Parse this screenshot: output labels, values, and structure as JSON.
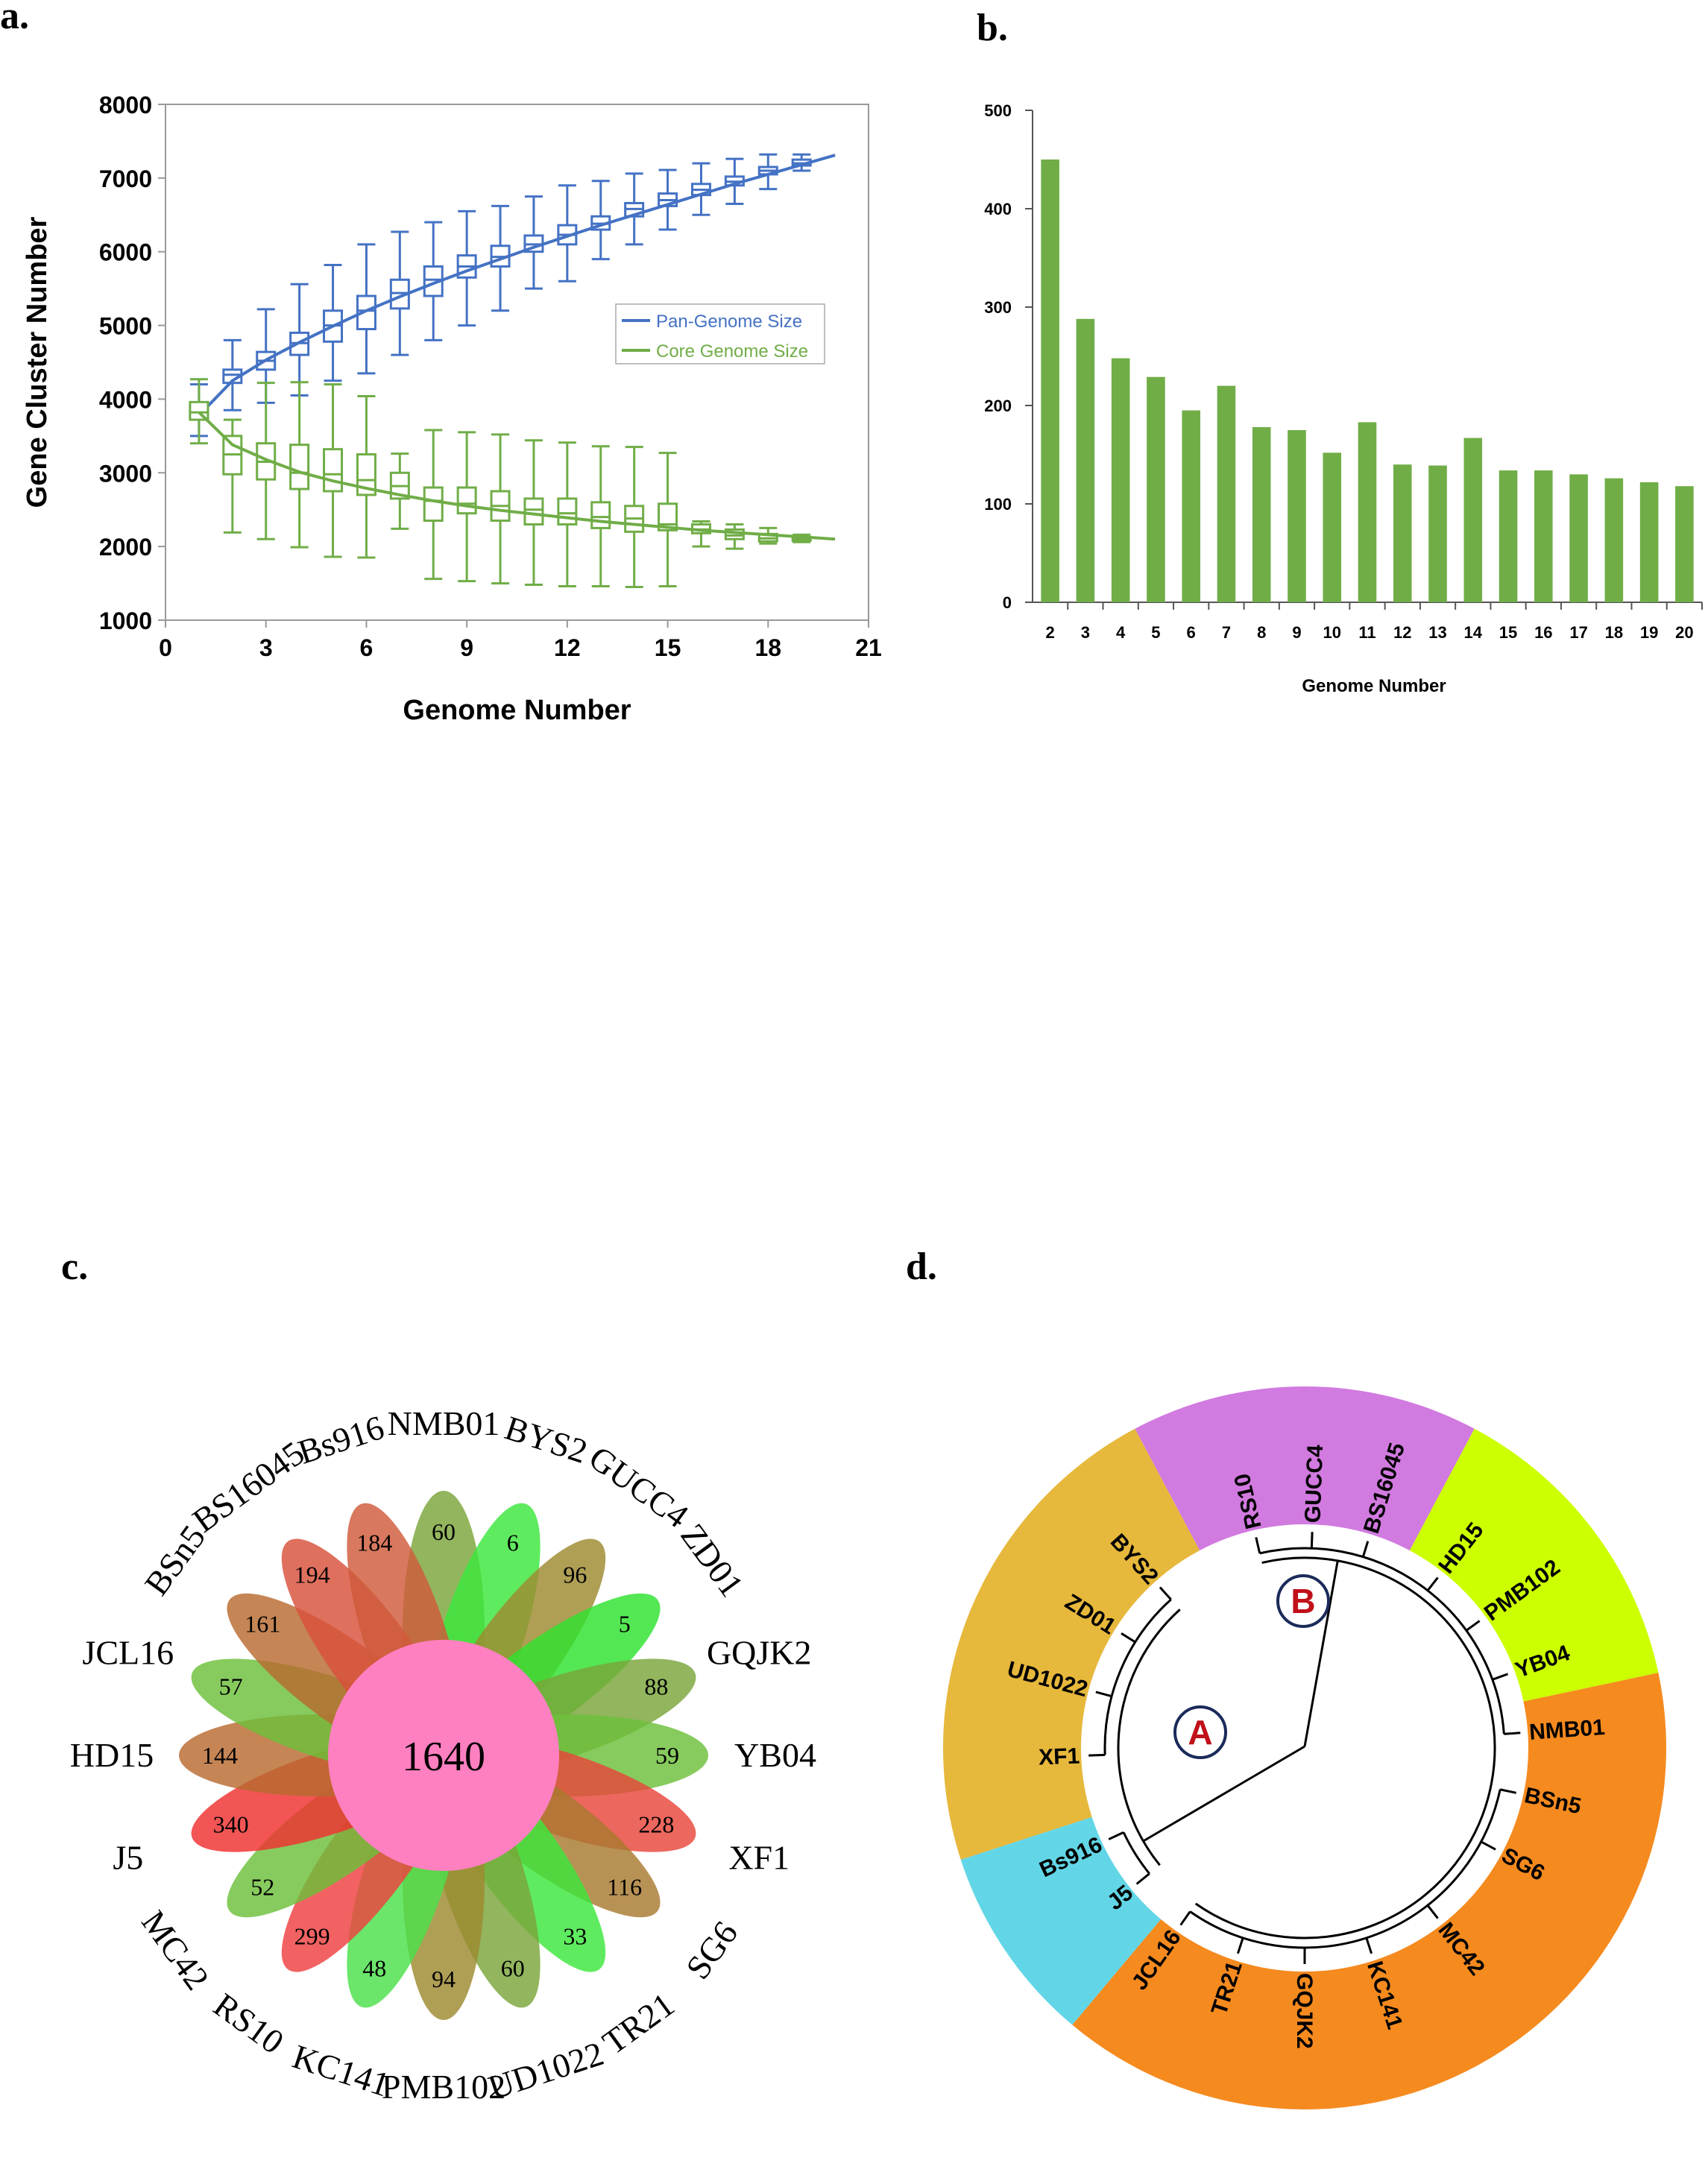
{
  "panel_labels": {
    "a": "a.",
    "b": "b.",
    "c": "c.",
    "d": "d."
  },
  "colors": {
    "pan": "#4472c4",
    "core": "#70ad47",
    "bar": "#70ad47",
    "center": "#ff80c0"
  },
  "chart_data": [
    {
      "id": "a",
      "type": "line",
      "xlabel": "Genome Number",
      "ylabel": "Gene Cluster Number",
      "xlim": [
        0,
        21
      ],
      "ylim": [
        1000,
        8000
      ],
      "xticks": [
        "0",
        "3",
        "6",
        "9",
        "12",
        "15",
        "18",
        "21"
      ],
      "yticks": [
        "1000",
        "2000",
        "3000",
        "4000",
        "5000",
        "6000",
        "7000",
        "8000"
      ],
      "legend": [
        "Pan-Genome Size",
        "Core Genome Size"
      ],
      "x": [
        1,
        2,
        3,
        4,
        5,
        6,
        7,
        8,
        9,
        10,
        11,
        12,
        13,
        14,
        15,
        16,
        17,
        18,
        19,
        20
      ],
      "series": [
        {
          "name": "Pan-Genome Size",
          "curve": [
            3780,
            4250,
            4530,
            4770,
            4990,
            5200,
            5390,
            5570,
            5740,
            5900,
            6060,
            6210,
            6360,
            6500,
            6640,
            6780,
            6920,
            7050,
            7180,
            7310
          ],
          "median": [
            3820,
            4330,
            4520,
            4760,
            5000,
            5200,
            5440,
            5620,
            5800,
            5930,
            6100,
            6230,
            6380,
            6580,
            6700,
            6840,
            6950,
            7100,
            7200
          ],
          "q1": [
            3730,
            4220,
            4400,
            4600,
            4780,
            4950,
            5230,
            5400,
            5650,
            5800,
            6000,
            6100,
            6300,
            6480,
            6620,
            6770,
            6900,
            7050,
            7170
          ],
          "q3": [
            3920,
            4400,
            4640,
            4900,
            5200,
            5400,
            5620,
            5800,
            5950,
            6080,
            6220,
            6360,
            6480,
            6660,
            6790,
            6920,
            7020,
            7150,
            7250
          ],
          "whisker_low": [
            3500,
            3850,
            3950,
            4050,
            4250,
            4350,
            4600,
            4800,
            5000,
            5200,
            5500,
            5600,
            5900,
            6100,
            6300,
            6500,
            6650,
            6850,
            7100
          ],
          "whisker_high": [
            4200,
            4800,
            5220,
            5560,
            5820,
            6100,
            6270,
            6400,
            6550,
            6620,
            6750,
            6900,
            6960,
            7060,
            7110,
            7200,
            7260,
            7320,
            7320
          ]
        },
        {
          "name": "Core Genome Size",
          "curve": [
            3820,
            3380,
            3180,
            3010,
            2890,
            2790,
            2700,
            2620,
            2550,
            2490,
            2440,
            2390,
            2340,
            2300,
            2260,
            2220,
            2190,
            2160,
            2130,
            2100
          ],
          "median": [
            3820,
            3250,
            3150,
            3000,
            2980,
            2900,
            2820,
            2620,
            2580,
            2550,
            2500,
            2450,
            2400,
            2380,
            2300,
            2230,
            2150,
            2110,
            2100
          ],
          "q1": [
            3720,
            2980,
            2910,
            2780,
            2750,
            2700,
            2650,
            2350,
            2450,
            2350,
            2300,
            2300,
            2250,
            2200,
            2220,
            2180,
            2100,
            2070,
            2080
          ],
          "q3": [
            3960,
            3500,
            3400,
            3380,
            3320,
            3250,
            3000,
            2800,
            2800,
            2750,
            2650,
            2650,
            2600,
            2550,
            2580,
            2300,
            2230,
            2170,
            2130
          ],
          "whisker_low": [
            3400,
            2190,
            2100,
            1990,
            1860,
            1850,
            2240,
            1560,
            1530,
            1500,
            1480,
            1460,
            1460,
            1450,
            1460,
            2000,
            1970,
            2040,
            2060
          ],
          "whisker_high": [
            4270,
            3720,
            4220,
            4230,
            4200,
            4040,
            3260,
            3580,
            3550,
            3520,
            3440,
            3410,
            3360,
            3350,
            3270,
            2340,
            2300,
            2250,
            2160
          ]
        }
      ]
    },
    {
      "id": "b",
      "type": "bar",
      "xlabel": "Genome Number",
      "ylabel": "",
      "ylim": [
        0,
        500
      ],
      "yticks": [
        "0",
        "100",
        "200",
        "300",
        "400",
        "500"
      ],
      "categories": [
        "2",
        "3",
        "4",
        "5",
        "6",
        "7",
        "8",
        "9",
        "10",
        "11",
        "12",
        "13",
        "14",
        "15",
        "16",
        "17",
        "18",
        "19",
        "20"
      ],
      "values": [
        450,
        288,
        248,
        229,
        195,
        220,
        178,
        175,
        152,
        183,
        140,
        139,
        167,
        134,
        134,
        130,
        126,
        122,
        118
      ]
    },
    {
      "id": "c",
      "type": "flower",
      "center_value": "1640",
      "petals": [
        {
          "label": "NMB01",
          "value": "60",
          "color": "#7aa53a"
        },
        {
          "label": "BYS2",
          "value": "6",
          "color": "#3ce63c"
        },
        {
          "label": "GUCC4",
          "value": "96",
          "color": "#9e8a30"
        },
        {
          "label": "ZD01",
          "value": "5",
          "color": "#2ee22e"
        },
        {
          "label": "GQJK2",
          "value": "88",
          "color": "#7aa53a"
        },
        {
          "label": "YB04",
          "value": "59",
          "color": "#6cbf3a"
        },
        {
          "label": "XF1",
          "value": "228",
          "color": "#e8453a"
        },
        {
          "label": "SG6",
          "value": "116",
          "color": "#a87a30"
        },
        {
          "label": "TR21",
          "value": "33",
          "color": "#3ce63c"
        },
        {
          "label": "UD1022",
          "value": "60",
          "color": "#7aa53a"
        },
        {
          "label": "PMB102",
          "value": "94",
          "color": "#9e8a30"
        },
        {
          "label": "KC141",
          "value": "48",
          "color": "#4ae04a"
        },
        {
          "label": "RS10",
          "value": "299",
          "color": "#ef4040"
        },
        {
          "label": "MC42",
          "value": "52",
          "color": "#6cbf3a"
        },
        {
          "label": "J5",
          "value": "340",
          "color": "#f03030"
        },
        {
          "label": "HD15",
          "value": "144",
          "color": "#b86a30"
        },
        {
          "label": "JCL16",
          "value": "57",
          "color": "#6cbf3a"
        },
        {
          "label": "BSn5",
          "value": "161",
          "color": "#b86a30"
        },
        {
          "label": "BS16045",
          "value": "194",
          "color": "#d8503a"
        },
        {
          "label": "Bs916",
          "value": "184",
          "color": "#d05a3a"
        }
      ]
    },
    {
      "id": "d",
      "type": "tree",
      "clades": [
        "A",
        "B"
      ],
      "sectors": [
        {
          "color": "#d17ae0",
          "labels": [
            "RS10",
            "GUCC4",
            "BS16045"
          ]
        },
        {
          "color": "#ccff00",
          "labels": [
            "HD15",
            "PMB102",
            "YB04",
            "NMB01"
          ]
        },
        {
          "color": "#f58a1f",
          "labels": [
            "BSn5",
            "SG6",
            "MC42",
            "KC141",
            "GQJK2",
            "TR21",
            "JCL16"
          ]
        },
        {
          "color": "#62d6e6",
          "labels": [
            "J5",
            "Bs916"
          ]
        },
        {
          "color": "#e6b83c",
          "labels": [
            "XF1",
            "UD1022",
            "ZD01",
            "BYS2"
          ]
        }
      ]
    }
  ]
}
